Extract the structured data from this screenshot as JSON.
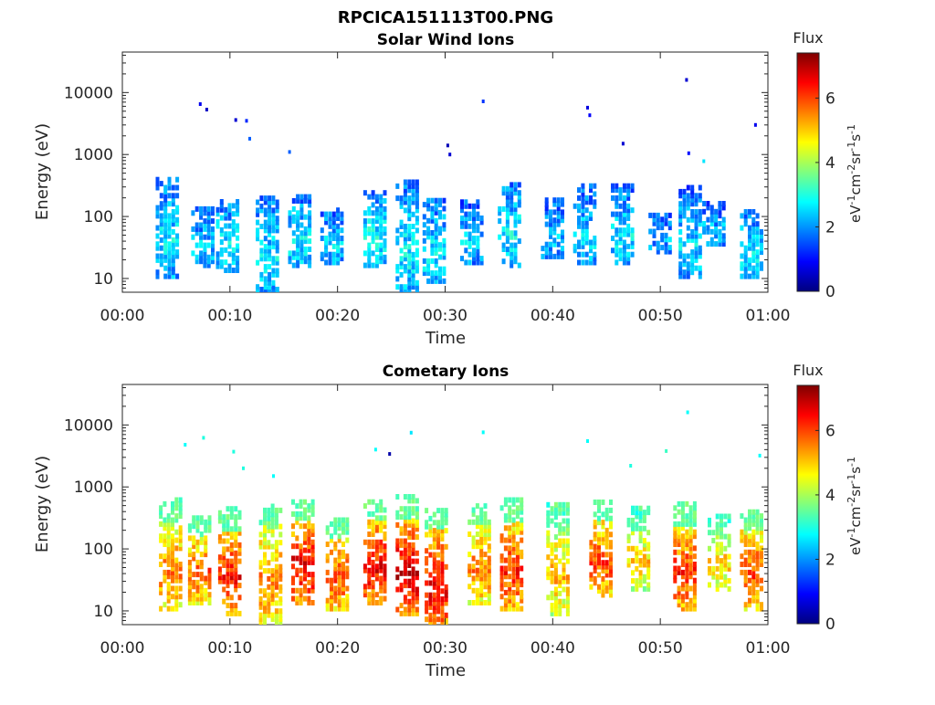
{
  "title": "RPCICA151113T00.PNG",
  "colors": {
    "axis": "#262626",
    "background": "#ffffff",
    "colormap": [
      "#00007f",
      "#0000ff",
      "#007fff",
      "#00ffff",
      "#7fff7f",
      "#ffff00",
      "#ff7f00",
      "#ff0000",
      "#7f0000"
    ]
  },
  "chart_data": [
    {
      "type": "heatmap",
      "title": "Solar Wind Ions",
      "xlabel": "Time",
      "ylabel": "Energy (eV)",
      "xticks": [
        "00:00",
        "00:10",
        "00:20",
        "00:30",
        "00:40",
        "00:50",
        "01:00"
      ],
      "xlim_minutes": [
        0,
        60
      ],
      "yscale": "log",
      "ylim": [
        6,
        45000
      ],
      "yticks": [
        10,
        100,
        1000,
        10000
      ],
      "ytick_labels": [
        "10",
        "100",
        "1000",
        "10000"
      ],
      "colorbar": {
        "title": "Flux",
        "unit": "eV-1cm-2sr-1s-1",
        "range": [
          0,
          7.4
        ],
        "ticks": [
          0,
          2,
          4,
          6
        ]
      },
      "clusters": [
        {
          "t": 4.2,
          "e_lo": 12,
          "e_hi": 500,
          "flux": 2.6
        },
        {
          "t": 7.5,
          "e_lo": 18,
          "e_hi": 160,
          "flux": 2.4
        },
        {
          "t": 9.8,
          "e_lo": 15,
          "e_hi": 220,
          "flux": 2.6
        },
        {
          "t": 13.5,
          "e_lo": 6,
          "e_hi": 250,
          "flux": 2.6
        },
        {
          "t": 16.5,
          "e_lo": 18,
          "e_hi": 250,
          "flux": 2.7
        },
        {
          "t": 19.5,
          "e_lo": 20,
          "e_hi": 160,
          "flux": 2.5
        },
        {
          "t": 23.5,
          "e_lo": 18,
          "e_hi": 300,
          "flux": 2.8
        },
        {
          "t": 26.5,
          "e_lo": 6,
          "e_hi": 450,
          "flux": 2.7
        },
        {
          "t": 29.0,
          "e_lo": 10,
          "e_hi": 220,
          "flux": 2.6
        },
        {
          "t": 32.5,
          "e_lo": 20,
          "e_hi": 200,
          "flux": 2.4
        },
        {
          "t": 36.0,
          "e_lo": 18,
          "e_hi": 400,
          "flux": 2.7
        },
        {
          "t": 40.0,
          "e_lo": 25,
          "e_hi": 220,
          "flux": 2.3
        },
        {
          "t": 43.0,
          "e_lo": 20,
          "e_hi": 350,
          "flux": 2.5
        },
        {
          "t": 46.5,
          "e_lo": 20,
          "e_hi": 350,
          "flux": 2.6
        },
        {
          "t": 50.0,
          "e_lo": 30,
          "e_hi": 120,
          "flux": 2.2
        },
        {
          "t": 52.8,
          "e_lo": 12,
          "e_hi": 350,
          "flux": 2.5
        },
        {
          "t": 55.0,
          "e_lo": 40,
          "e_hi": 180,
          "flux": 2.3
        },
        {
          "t": 58.5,
          "e_lo": 12,
          "e_hi": 150,
          "flux": 2.6
        }
      ],
      "outliers": [
        {
          "t": 7.2,
          "e": 6500,
          "flux": 0.8
        },
        {
          "t": 7.8,
          "e": 5300,
          "flux": 0.5
        },
        {
          "t": 10.5,
          "e": 3600,
          "flux": 0.6
        },
        {
          "t": 11.5,
          "e": 3500,
          "flux": 1.2
        },
        {
          "t": 11.8,
          "e": 1800,
          "flux": 1.6
        },
        {
          "t": 15.5,
          "e": 1100,
          "flux": 1.6
        },
        {
          "t": 30.2,
          "e": 1400,
          "flux": 0.4
        },
        {
          "t": 30.4,
          "e": 1000,
          "flux": 0.6
        },
        {
          "t": 33.5,
          "e": 7200,
          "flux": 1.3
        },
        {
          "t": 43.2,
          "e": 5700,
          "flux": 0.7
        },
        {
          "t": 43.4,
          "e": 4300,
          "flux": 0.9
        },
        {
          "t": 46.5,
          "e": 1500,
          "flux": 0.6
        },
        {
          "t": 52.4,
          "e": 16000,
          "flux": 0.6
        },
        {
          "t": 52.6,
          "e": 1050,
          "flux": 1.0
        },
        {
          "t": 58.8,
          "e": 3000,
          "flux": 0.8
        },
        {
          "t": 54.0,
          "e": 780,
          "flux": 2.6
        }
      ]
    },
    {
      "type": "heatmap",
      "title": "Cometary Ions",
      "xlabel": "Time",
      "ylabel": "Energy (eV)",
      "xticks": [
        "00:00",
        "00:10",
        "00:20",
        "00:30",
        "00:40",
        "00:50",
        "01:00"
      ],
      "xlim_minutes": [
        0,
        60
      ],
      "yscale": "log",
      "ylim": [
        6,
        45000
      ],
      "yticks": [
        10,
        100,
        1000,
        10000
      ],
      "ytick_labels": [
        "10",
        "100",
        "1000",
        "10000"
      ],
      "colorbar": {
        "title": "Flux",
        "unit": "eV-1cm-2sr-1s-1",
        "range": [
          0,
          7.4
        ],
        "ticks": [
          0,
          2,
          4,
          6
        ]
      },
      "clusters": [
        {
          "t": 4.5,
          "e_lo": 12,
          "e_hi": 700,
          "flux": 5.6
        },
        {
          "t": 7.2,
          "e_lo": 15,
          "e_hi": 400,
          "flux": 5.8
        },
        {
          "t": 10.0,
          "e_lo": 10,
          "e_hi": 500,
          "flux": 6.4
        },
        {
          "t": 13.8,
          "e_lo": 7,
          "e_hi": 600,
          "flux": 5.6
        },
        {
          "t": 16.8,
          "e_lo": 15,
          "e_hi": 700,
          "flux": 6.6
        },
        {
          "t": 20.0,
          "e_lo": 12,
          "e_hi": 350,
          "flux": 6.0
        },
        {
          "t": 23.5,
          "e_lo": 15,
          "e_hi": 700,
          "flux": 6.6
        },
        {
          "t": 26.5,
          "e_lo": 10,
          "e_hi": 800,
          "flux": 6.8
        },
        {
          "t": 29.2,
          "e_lo": 6,
          "e_hi": 500,
          "flux": 6.6
        },
        {
          "t": 33.2,
          "e_lo": 15,
          "e_hi": 600,
          "flux": 5.6
        },
        {
          "t": 36.2,
          "e_lo": 12,
          "e_hi": 700,
          "flux": 6.2
        },
        {
          "t": 40.5,
          "e_lo": 10,
          "e_hi": 600,
          "flux": 5.2
        },
        {
          "t": 44.5,
          "e_lo": 20,
          "e_hi": 700,
          "flux": 6.0
        },
        {
          "t": 48.0,
          "e_lo": 25,
          "e_hi": 500,
          "flux": 5.0
        },
        {
          "t": 52.3,
          "e_lo": 12,
          "e_hi": 600,
          "flux": 6.2
        },
        {
          "t": 55.5,
          "e_lo": 25,
          "e_hi": 400,
          "flux": 5.0
        },
        {
          "t": 58.5,
          "e_lo": 12,
          "e_hi": 500,
          "flux": 6.0
        }
      ],
      "outliers": [
        {
          "t": 5.8,
          "e": 4800,
          "flux": 2.8
        },
        {
          "t": 7.5,
          "e": 6200,
          "flux": 3.0
        },
        {
          "t": 10.3,
          "e": 3700,
          "flux": 3.0
        },
        {
          "t": 11.2,
          "e": 2000,
          "flux": 3.0
        },
        {
          "t": 14.0,
          "e": 1500,
          "flux": 2.8
        },
        {
          "t": 23.5,
          "e": 4000,
          "flux": 2.8
        },
        {
          "t": 24.8,
          "e": 3400,
          "flux": 0.3
        },
        {
          "t": 26.8,
          "e": 7500,
          "flux": 2.6
        },
        {
          "t": 33.5,
          "e": 7600,
          "flux": 2.8
        },
        {
          "t": 43.2,
          "e": 5500,
          "flux": 2.8
        },
        {
          "t": 47.2,
          "e": 2200,
          "flux": 3.0
        },
        {
          "t": 50.5,
          "e": 3800,
          "flux": 3.2
        },
        {
          "t": 52.5,
          "e": 16000,
          "flux": 2.8
        },
        {
          "t": 59.2,
          "e": 3200,
          "flux": 2.8
        }
      ]
    }
  ]
}
